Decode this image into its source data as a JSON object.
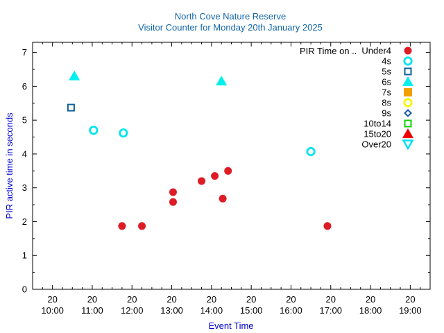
{
  "chart_data": {
    "type": "scatter",
    "title": "North Cove Nature Reserve",
    "subtitle": "Visitor Counter for Monday 20th January 2025",
    "xlabel": "Event Time",
    "ylabel": "PIR active time in seconds",
    "xlim": [
      "09:30",
      "19:30"
    ],
    "ylim": [
      0,
      7.3
    ],
    "x_ticks": [
      {
        "day": "20",
        "time": "10:00"
      },
      {
        "day": "20",
        "time": "11:00"
      },
      {
        "day": "20",
        "time": "12:00"
      },
      {
        "day": "20",
        "time": "13:00"
      },
      {
        "day": "20",
        "time": "14:00"
      },
      {
        "day": "20",
        "time": "15:00"
      },
      {
        "day": "20",
        "time": "16:00"
      },
      {
        "day": "20",
        "time": "17:00"
      },
      {
        "day": "20",
        "time": "18:00"
      },
      {
        "day": "20",
        "time": "19:00"
      }
    ],
    "y_ticks": [
      "0",
      "1",
      "2",
      "3",
      "4",
      "5",
      "6",
      "7"
    ],
    "grid": false,
    "legend_title": "PIR Time on ..",
    "legend_placement": "top-right",
    "series": [
      {
        "name": "Under4",
        "color": "#dd1c26",
        "marker": "filled-circle",
        "points": [
          {
            "x": "11:45",
            "y": 1.87
          },
          {
            "x": "12:15",
            "y": 1.87
          },
          {
            "x": "13:02",
            "y": 2.87
          },
          {
            "x": "13:02",
            "y": 2.58
          },
          {
            "x": "13:45",
            "y": 3.2
          },
          {
            "x": "14:05",
            "y": 3.35
          },
          {
            "x": "14:17",
            "y": 2.68
          },
          {
            "x": "14:25",
            "y": 3.5
          },
          {
            "x": "16:55",
            "y": 1.87
          }
        ]
      },
      {
        "name": "4s",
        "color": "#00e5ee",
        "marker": "open-circle",
        "points": [
          {
            "x": "11:02",
            "y": 4.7
          },
          {
            "x": "11:47",
            "y": 4.62
          },
          {
            "x": "16:30",
            "y": 4.07
          }
        ]
      },
      {
        "name": "5s",
        "color": "#0f5f9a",
        "marker": "open-square",
        "points": [
          {
            "x": "10:28",
            "y": 5.37
          }
        ]
      },
      {
        "name": "6s",
        "color": "#00f0f0",
        "marker": "filled-triangle",
        "points": [
          {
            "x": "10:33",
            "y": 6.3
          },
          {
            "x": "14:15",
            "y": 6.15
          }
        ]
      },
      {
        "name": "7s",
        "color": "#f0a000",
        "marker": "filled-square",
        "points": []
      },
      {
        "name": "8s",
        "color": "#f6f600",
        "marker": "open-circle",
        "points": []
      },
      {
        "name": "9s",
        "color": "#1a58a8",
        "marker": "open-diamond",
        "points": []
      },
      {
        "name": "10to14",
        "color": "#10d000",
        "marker": "open-square",
        "points": []
      },
      {
        "name": "15to20",
        "color": "#ee0000",
        "marker": "filled-triangle",
        "points": []
      },
      {
        "name": "Over20",
        "color": "#00e0f0",
        "marker": "open-triangle-down",
        "points": []
      }
    ],
    "colors": {
      "title": "#1166aa",
      "axis_label": "#0000cc",
      "axis": "#000000"
    }
  }
}
